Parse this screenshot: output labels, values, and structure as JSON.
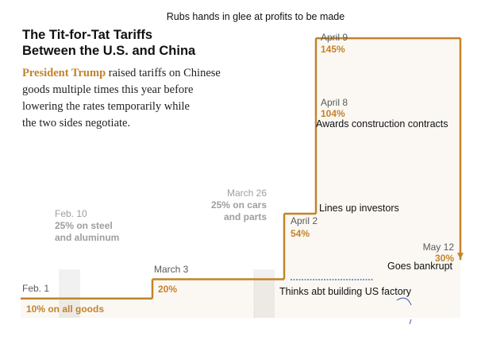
{
  "colors": {
    "accent": "#c2832b",
    "gray_text": "#9e9e9e",
    "dark_text": "#5a5a5a",
    "gray_bar": "#e6e6e6"
  },
  "top_note": "Rubs hands in glee at profits to be made",
  "title_lines": [
    "The Tit-for-Tat Tariffs",
    "Between the U.S. and China"
  ],
  "subtitle": {
    "highlight": "President Trump",
    "line1_rest": " raised tariffs on Chinese",
    "line2": "goods multiple times this year before",
    "line3": "lowering the rates temporarily while",
    "line4": "the two sides negotiate."
  },
  "annotations": {
    "awards": "Awards construction contracts",
    "investors": "Lines up investors",
    "factory": "Thinks abt building US factory",
    "bankrupt": "Goes bankrupt"
  },
  "chart_data": {
    "type": "line",
    "title": "The Tit-for-Tat Tariffs Between the U.S. and China",
    "y_unit": "percent tariff",
    "ylim": [
      0,
      150
    ],
    "step_series": {
      "name": "",
      "points": [
        {
          "date": "Feb. 1",
          "value": 10,
          "label": "10% on all goods"
        },
        {
          "date": "March 3",
          "value": 20,
          "label": "20%"
        },
        {
          "date": "April 2",
          "value": 54,
          "label": "54%"
        },
        {
          "date": "April 8",
          "value": 104,
          "label": "104%"
        },
        {
          "date": "April 9",
          "value": 145,
          "label": "145%"
        },
        {
          "date": "May 12",
          "value": 30,
          "label": "30%"
        }
      ]
    },
    "other_tariffs": [
      {
        "date": "Feb. 10",
        "value": 25,
        "label_lines": [
          "25% on steel",
          "and aluminum"
        ]
      },
      {
        "date": "March 26",
        "value": 25,
        "label_lines": [
          "25% on cars",
          "and parts"
        ]
      }
    ],
    "grid": false,
    "legend": "none"
  }
}
